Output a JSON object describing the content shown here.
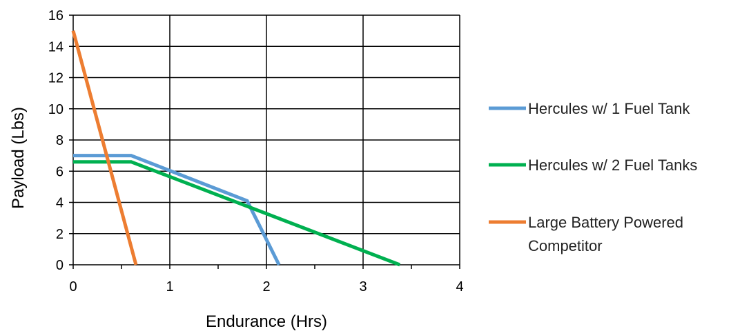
{
  "chart_data": {
    "type": "line",
    "title": "",
    "xlabel": "Endurance  (Hrs)",
    "ylabel": "Payload (Lbs)",
    "xlim": [
      0,
      4
    ],
    "ylim": [
      0,
      16
    ],
    "x_ticks": [
      "0",
      "1",
      "2",
      "3",
      "4"
    ],
    "y_ticks": [
      "0",
      "2",
      "4",
      "6",
      "8",
      "10",
      "12",
      "14",
      "16"
    ],
    "grid": true,
    "legend_position": "right",
    "series": [
      {
        "name": "Hercules w/ 1 Fuel Tank",
        "color": "#5B9BD5",
        "x": [
          0,
          0.6,
          1.8,
          2.13
        ],
        "y": [
          7,
          7,
          4.1,
          0
        ]
      },
      {
        "name": "Hercules w/ 2 Fuel Tanks",
        "color": "#00B050",
        "x": [
          0,
          0.6,
          3.38
        ],
        "y": [
          6.6,
          6.6,
          0
        ]
      },
      {
        "name": "Large Battery Powered Competitor",
        "legend_lines": [
          "Large Battery Powered",
          "Competitor"
        ],
        "color": "#ED7D31",
        "x": [
          0,
          0.65
        ],
        "y": [
          15,
          0
        ]
      }
    ]
  }
}
